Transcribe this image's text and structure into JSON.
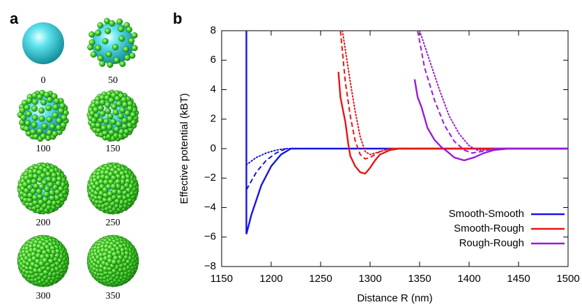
{
  "panel_a": {
    "label": "a",
    "images": [
      {
        "label": "0"
      },
      {
        "label": "50"
      },
      {
        "label": "100"
      },
      {
        "label": "150"
      },
      {
        "label": "200"
      },
      {
        "label": "250"
      },
      {
        "label": "300"
      },
      {
        "label": "350"
      }
    ]
  },
  "chart_data": {
    "type": "line",
    "panel_label": "b",
    "xlabel": "Distance R (nm)",
    "ylabel": "Effective potential (kBT)",
    "xlim": [
      1150,
      1500
    ],
    "ylim": [
      -8,
      8
    ],
    "xticks": [
      1150,
      1200,
      1250,
      1300,
      1350,
      1400,
      1450,
      1500
    ],
    "yticks": [
      {
        "value": -8,
        "label": "−8"
      },
      {
        "value": -6,
        "label": "−6"
      },
      {
        "value": -4,
        "label": "−4"
      },
      {
        "value": -2,
        "label": "−2"
      },
      0,
      2,
      4,
      6,
      8
    ],
    "legend": "lower right",
    "series": [
      {
        "name": "Smooth-Smooth",
        "color": "#1515e6",
        "style": "solid",
        "x": [
          1175,
          1175,
          1180,
          1190,
          1200,
          1210,
          1220,
          1500
        ],
        "values": [
          8,
          -5.8,
          -4.5,
          -2.5,
          -1.2,
          -0.4,
          0,
          0
        ]
      },
      {
        "color": "#1515e6",
        "style": "dashed",
        "x": [
          1175,
          1185,
          1195,
          1205,
          1215,
          1500
        ],
        "values": [
          -2.8,
          -1.6,
          -0.8,
          -0.3,
          0,
          0
        ]
      },
      {
        "color": "#1515e6",
        "style": "dotted",
        "x": [
          1175,
          1185,
          1195,
          1205,
          1215,
          1500
        ],
        "values": [
          -1.1,
          -0.6,
          -0.3,
          -0.1,
          0,
          0
        ]
      },
      {
        "name": "Smooth-Rough",
        "color": "#e61515",
        "style": "solid",
        "x": [
          1268,
          1270,
          1275,
          1278,
          1280,
          1285,
          1290,
          1295,
          1300,
          1305,
          1310,
          1320,
          1330,
          1500
        ],
        "values": [
          5.2,
          3.5,
          1.8,
          0.3,
          -0.5,
          -1.2,
          -1.6,
          -1.7,
          -1.3,
          -0.8,
          -0.4,
          -0.1,
          0,
          0
        ]
      },
      {
        "color": "#e61515",
        "style": "dashed",
        "x": [
          1270,
          1275,
          1280,
          1285,
          1290,
          1295,
          1300,
          1310,
          1320,
          1500
        ],
        "values": [
          8,
          4.5,
          2.2,
          0.5,
          -0.4,
          -0.7,
          -0.6,
          -0.2,
          0,
          0
        ]
      },
      {
        "color": "#e61515",
        "style": "dotted",
        "x": [
          1272,
          1280,
          1285,
          1290,
          1295,
          1300,
          1310,
          1320,
          1500
        ],
        "values": [
          8,
          4.5,
          2.5,
          0.8,
          -0.2,
          -0.4,
          -0.2,
          0,
          0
        ]
      },
      {
        "name": "Rough-Rough",
        "color": "#9a1ad6",
        "style": "solid",
        "x": [
          1345,
          1348,
          1352,
          1358,
          1365,
          1372,
          1378,
          1385,
          1395,
          1405,
          1415,
          1425,
          1440,
          1500
        ],
        "values": [
          4.7,
          3.5,
          2.8,
          1.4,
          0.6,
          0.1,
          -0.2,
          -0.6,
          -0.8,
          -0.6,
          -0.3,
          -0.1,
          0,
          0
        ]
      },
      {
        "color": "#9a1ad6",
        "style": "dashed",
        "x": [
          1348,
          1355,
          1365,
          1375,
          1385,
          1395,
          1403,
          1412,
          1425,
          1500
        ],
        "values": [
          8,
          5.5,
          3.3,
          1.6,
          0.5,
          -0.1,
          -0.3,
          -0.2,
          0,
          0
        ]
      },
      {
        "color": "#9a1ad6",
        "style": "dotted",
        "x": [
          1350,
          1360,
          1370,
          1380,
          1390,
          1400,
          1408,
          1418,
          1430,
          1500
        ],
        "values": [
          8,
          6,
          4,
          2.2,
          1,
          0.2,
          -0.1,
          -0.1,
          0,
          0
        ]
      }
    ]
  }
}
